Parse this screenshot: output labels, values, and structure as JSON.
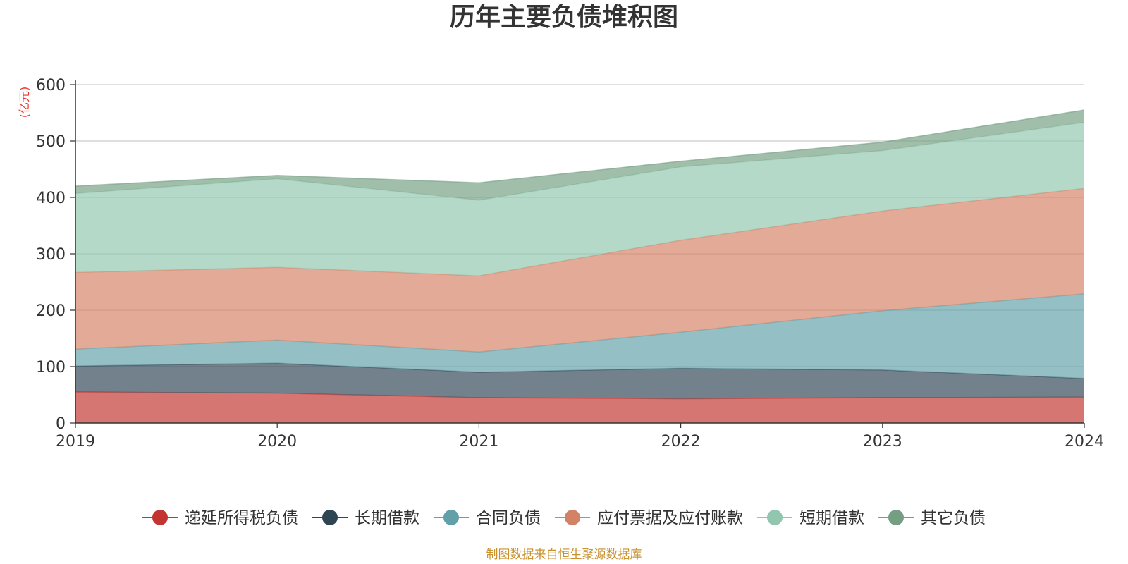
{
  "chart_data": {
    "type": "area",
    "stacked": true,
    "title": "历年主要负债堆积图",
    "unit": "(亿元)",
    "x": [
      "2019",
      "2020",
      "2021",
      "2022",
      "2023",
      "2024"
    ],
    "ylim": [
      0,
      600
    ],
    "yticks": [
      "0",
      "100",
      "200",
      "300",
      "400",
      "500",
      "600"
    ],
    "grid": true,
    "legend_position": "bottom",
    "series": [
      {
        "name": "递延所得税负债",
        "color": "#c23531",
        "values": [
          55,
          53,
          45,
          43,
          45,
          46
        ]
      },
      {
        "name": "长期借款",
        "color": "#2f4554",
        "values": [
          46,
          53,
          45,
          54,
          49,
          33
        ]
      },
      {
        "name": "合同负债",
        "color": "#61a0a8",
        "values": [
          30,
          41,
          36,
          64,
          105,
          150
        ]
      },
      {
        "name": "应付票据及应付账款",
        "color": "#d48265",
        "values": [
          136,
          129,
          135,
          163,
          177,
          187
        ]
      },
      {
        "name": "短期借款",
        "color": "#91c7ae",
        "values": [
          140,
          157,
          134,
          130,
          107,
          117
        ]
      },
      {
        "name": "其它负债",
        "color": "#749f83",
        "values": [
          13,
          6,
          31,
          10,
          15,
          22
        ]
      }
    ],
    "source": "制图数据来自恒生聚源数据库"
  }
}
